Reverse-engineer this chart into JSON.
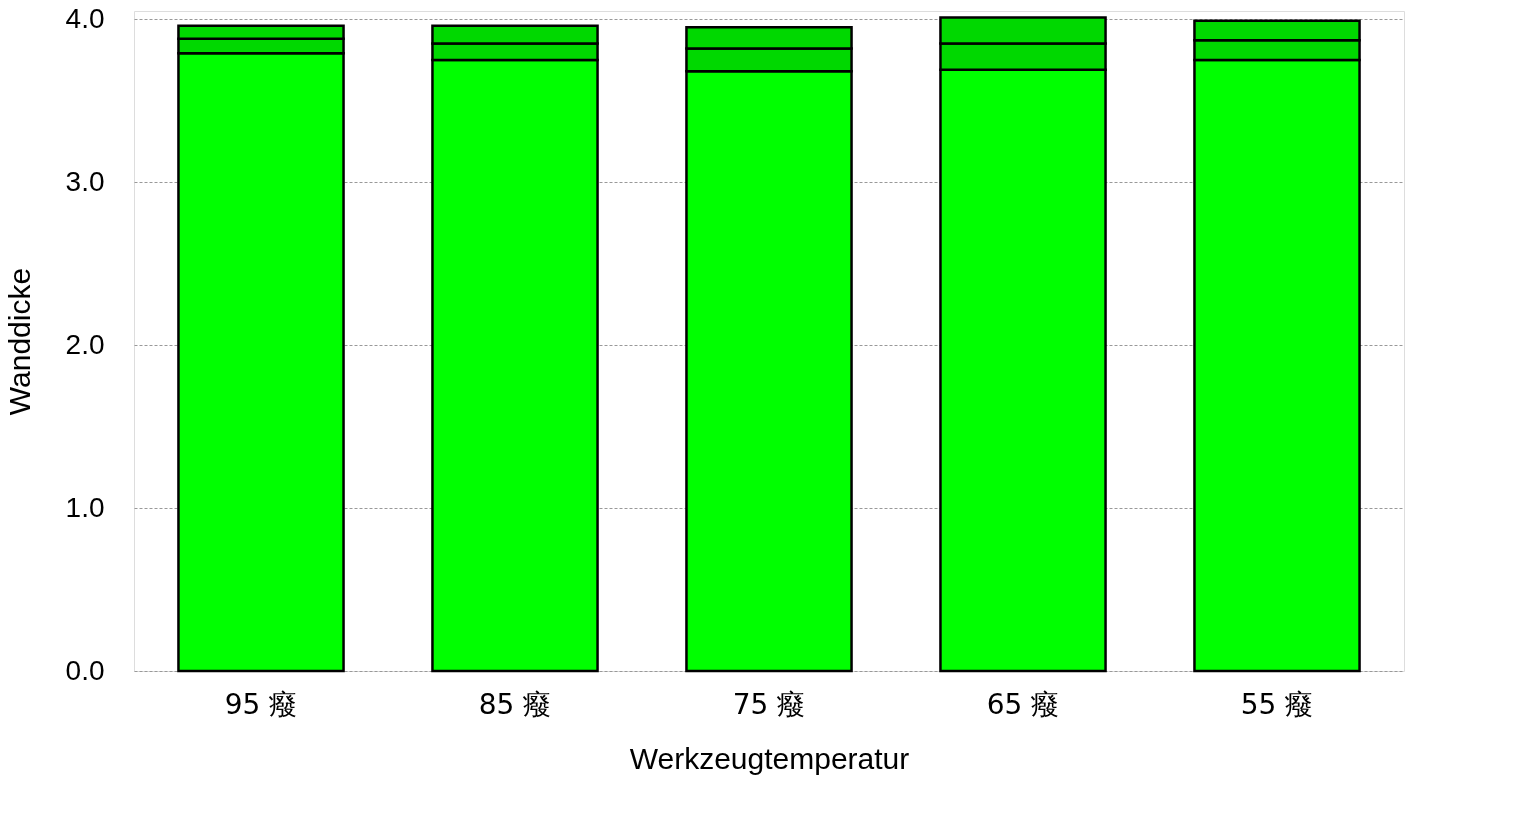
{
  "chart_data": {
    "type": "bar",
    "stacked": true,
    "xlabel": "Werkzeugtemperatur",
    "ylabel": "Wanddicke",
    "categories": [
      "95 癈",
      "85 癈",
      "75 癈",
      "65 癈",
      "55 癈"
    ],
    "series": [
      {
        "color": "#00ff00",
        "values": [
          3.79,
          3.75,
          3.68,
          3.69,
          3.75
        ]
      },
      {
        "color": "#00d800",
        "values": [
          0.09,
          0.1,
          0.14,
          0.16,
          0.12
        ]
      },
      {
        "color": "#00d800",
        "values": [
          0.08,
          0.11,
          0.13,
          0.16,
          0.12
        ]
      }
    ],
    "ylim": [
      0,
      4.05
    ],
    "yticks": [
      {
        "value": 0,
        "label": "0.0"
      },
      {
        "value": 1,
        "label": "1.0"
      },
      {
        "value": 2,
        "label": "2.0"
      },
      {
        "value": 3,
        "label": "3.0"
      },
      {
        "value": 4,
        "label": "4.0"
      }
    ],
    "grid": "y",
    "legend": false
  }
}
